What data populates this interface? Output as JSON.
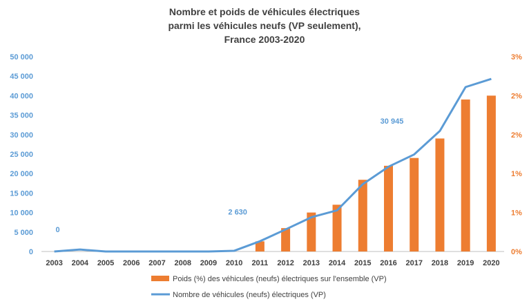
{
  "chart_data": {
    "type": "bar",
    "title": [
      "Nombre et poids de véhicules électriques",
      "parmi les véhicules neufs (VP seulement),",
      "France 2003-2020"
    ],
    "categories": [
      "2003",
      "2004",
      "2005",
      "2006",
      "2007",
      "2008",
      "2009",
      "2010",
      "2011",
      "2012",
      "2013",
      "2014",
      "2015",
      "2016",
      "2017",
      "2018",
      "2019",
      "2020"
    ],
    "series": [
      {
        "name": "Poids (%) des véhicules (neufs) électriques sur l'ensemble (VP)",
        "chart": "bar",
        "axis": "right",
        "color": "#ed7d31",
        "values": [
          0,
          0,
          0,
          0,
          0,
          0,
          0,
          0,
          0.13,
          0.3,
          0.5,
          0.6,
          0.92,
          1.1,
          1.2,
          1.45,
          1.95,
          2.0
        ]
      },
      {
        "name": "Nombre de véhicules (neufs) électriques (VP)",
        "chart": "line",
        "axis": "left",
        "color": "#5b9bd5",
        "values": [
          0,
          500,
          0,
          0,
          0,
          0,
          0,
          184,
          2630,
          5663,
          8779,
          10561,
          17268,
          21751,
          24904,
          30945,
          42200,
          44300
        ]
      }
    ],
    "y_left": {
      "min": 0,
      "max": 50000,
      "ticks": [
        "0",
        "5 000",
        "10 000",
        "15 000",
        "20 000",
        "25 000",
        "30 000",
        "35 000",
        "40 000",
        "45 000",
        "50 000"
      ]
    },
    "y_right": {
      "min": 0,
      "max": 2.5,
      "ticks": [
        "0%",
        "1%",
        "1%",
        "2%",
        "2%",
        "3%"
      ]
    },
    "annotations": [
      {
        "text": "0",
        "x": "2003",
        "y": 5000
      },
      {
        "text": "2 630",
        "x": "2010",
        "y": 9500
      },
      {
        "text": "30 945",
        "x": "2016",
        "y": 32800
      }
    ],
    "grid": false,
    "legend_position": "bottom"
  }
}
